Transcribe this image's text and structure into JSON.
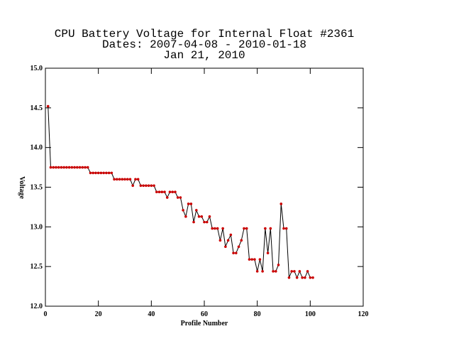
{
  "chart_data": {
    "type": "line",
    "title": [
      "CPU Battery Voltage for Internal Float #2361",
      "Dates:  2007-04-08 -  2010-01-18",
      "Jan 21, 2010"
    ],
    "xlabel": "Profile Number",
    "ylabel": "Voltage",
    "xlim": [
      0,
      120
    ],
    "xticks": [
      0,
      20,
      40,
      60,
      80,
      100,
      120
    ],
    "ylim": [
      12,
      15
    ],
    "yticks": [
      {
        "value": 12,
        "label": "12.0"
      },
      12.5,
      {
        "value": 13,
        "label": "13.0"
      },
      13.5,
      {
        "value": 14,
        "label": "14.0"
      },
      14.5,
      {
        "value": 15,
        "label": "15.0"
      }
    ],
    "line_color": "#000000",
    "marker_color": "#cc0000",
    "x": [
      1,
      2,
      3,
      4,
      5,
      6,
      7,
      8,
      9,
      10,
      11,
      12,
      13,
      14,
      15,
      16,
      17,
      18,
      19,
      20,
      21,
      22,
      23,
      24,
      25,
      26,
      27,
      28,
      29,
      30,
      31,
      32,
      33,
      34,
      35,
      36,
      37,
      38,
      39,
      40,
      41,
      42,
      43,
      44,
      45,
      46,
      47,
      48,
      49,
      50,
      51,
      52,
      53,
      54,
      55,
      56,
      57,
      58,
      59,
      60,
      61,
      62,
      63,
      64,
      65,
      66,
      67,
      68,
      69,
      70,
      71,
      72,
      73,
      74,
      75,
      76,
      77,
      78,
      79,
      80,
      81,
      82,
      83,
      84,
      85,
      86,
      87,
      88,
      89,
      90,
      91,
      92,
      93,
      94,
      95,
      96,
      97,
      98,
      99,
      100,
      101
    ],
    "values": [
      14.52,
      13.75,
      13.75,
      13.75,
      13.75,
      13.75,
      13.75,
      13.75,
      13.75,
      13.75,
      13.75,
      13.75,
      13.75,
      13.75,
      13.75,
      13.75,
      13.68,
      13.68,
      13.68,
      13.68,
      13.68,
      13.68,
      13.68,
      13.68,
      13.68,
      13.6,
      13.6,
      13.6,
      13.6,
      13.6,
      13.6,
      13.6,
      13.52,
      13.6,
      13.6,
      13.52,
      13.52,
      13.52,
      13.52,
      13.52,
      13.52,
      13.44,
      13.44,
      13.44,
      13.44,
      13.37,
      13.44,
      13.44,
      13.44,
      13.37,
      13.37,
      13.21,
      13.13,
      13.29,
      13.29,
      13.06,
      13.21,
      13.13,
      13.13,
      13.06,
      13.06,
      13.13,
      12.98,
      12.98,
      12.98,
      12.83,
      12.98,
      12.75,
      12.83,
      12.9,
      12.67,
      12.67,
      12.75,
      12.83,
      12.98,
      12.98,
      12.59,
      12.59,
      12.59,
      12.44,
      12.59,
      12.44,
      12.98,
      12.67,
      12.98,
      12.44,
      12.44,
      12.52,
      13.29,
      12.98,
      12.98,
      12.36,
      12.44,
      12.44,
      12.36,
      12.44,
      12.36,
      12.36,
      12.44,
      12.36,
      12.36
    ]
  }
}
